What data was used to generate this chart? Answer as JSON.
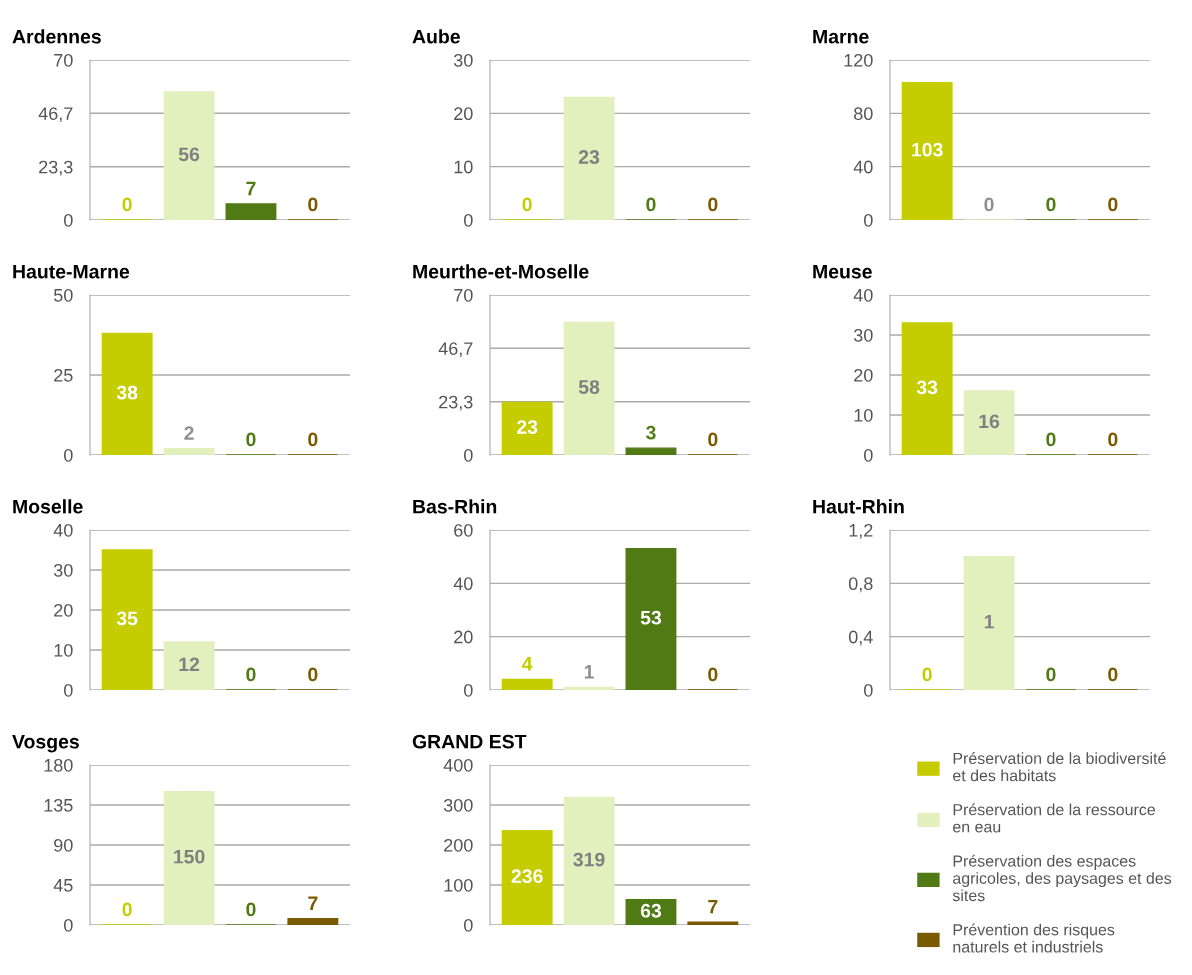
{
  "chart_data": [
    {
      "type": "bar",
      "title": "Ardennes",
      "categories": [
        null
      ],
      "ylim": [
        0,
        70
      ],
      "yticks": [
        0,
        {
          "value": 23.3,
          "label": "23,3"
        },
        {
          "value": 46.7,
          "label": "46,7"
        },
        70
      ],
      "grid": "y",
      "data_labels": true,
      "tick_labels": "y",
      "series": [
        {
          "color": "#c5cc00",
          "values": [
            0
          ]
        },
        {
          "color": "#e1f0bd",
          "values": [
            56
          ]
        },
        {
          "color": "#4f7a14",
          "values": [
            7
          ]
        },
        {
          "color": "#7a5a00",
          "values": [
            0
          ]
        }
      ]
    },
    {
      "type": "bar",
      "title": "Aube",
      "categories": [
        null
      ],
      "ylim": [
        0,
        30
      ],
      "yticks": [
        0,
        10,
        20,
        30
      ],
      "grid": "y",
      "data_labels": true,
      "tick_labels": "y",
      "series": [
        {
          "color": "#c5cc00",
          "values": [
            0
          ]
        },
        {
          "color": "#e1f0bd",
          "values": [
            23
          ]
        },
        {
          "color": "#4f7a14",
          "values": [
            0
          ]
        },
        {
          "color": "#7a5a00",
          "values": [
            0
          ]
        }
      ]
    },
    {
      "type": "bar",
      "title": "Marne",
      "categories": [
        null
      ],
      "ylim": [
        0,
        120
      ],
      "yticks": [
        0,
        40,
        80,
        120
      ],
      "grid": "y",
      "data_labels": true,
      "tick_labels": "y",
      "series": [
        {
          "color": "#c5cc00",
          "values": [
            103
          ]
        },
        {
          "color": "#e1f0bd",
          "values": [
            0
          ]
        },
        {
          "color": "#4f7a14",
          "values": [
            0
          ]
        },
        {
          "color": "#7a5a00",
          "values": [
            0
          ]
        }
      ]
    },
    {
      "type": "bar",
      "title": "Haute-Marne",
      "categories": [
        null
      ],
      "ylim": [
        0,
        50
      ],
      "yticks": [
        0,
        25,
        50
      ],
      "grid": "y",
      "data_labels": true,
      "tick_labels": "y",
      "series": [
        {
          "color": "#c5cc00",
          "values": [
            38
          ]
        },
        {
          "color": "#e1f0bd",
          "values": [
            2
          ]
        },
        {
          "color": "#4f7a14",
          "values": [
            0
          ]
        },
        {
          "color": "#7a5a00",
          "values": [
            0
          ]
        }
      ]
    },
    {
      "type": "bar",
      "title": "Meurthe-et-Moselle",
      "categories": [
        null
      ],
      "ylim": [
        0,
        70
      ],
      "yticks": [
        0,
        {
          "value": 23.3,
          "label": "23,3"
        },
        {
          "value": 46.7,
          "label": "46,7"
        },
        70
      ],
      "grid": "y",
      "data_labels": true,
      "tick_labels": "y",
      "series": [
        {
          "color": "#c5cc00",
          "values": [
            23
          ]
        },
        {
          "color": "#e1f0bd",
          "values": [
            58
          ]
        },
        {
          "color": "#4f7a14",
          "values": [
            3
          ]
        },
        {
          "color": "#7a5a00",
          "values": [
            0
          ]
        }
      ]
    },
    {
      "type": "bar",
      "title": "Meuse",
      "categories": [
        null
      ],
      "ylim": [
        0,
        40
      ],
      "yticks": [
        0,
        10,
        20,
        30,
        40
      ],
      "grid": "y",
      "data_labels": true,
      "tick_labels": "y",
      "series": [
        {
          "color": "#c5cc00",
          "values": [
            33
          ]
        },
        {
          "color": "#e1f0bd",
          "values": [
            16
          ]
        },
        {
          "color": "#4f7a14",
          "values": [
            0
          ]
        },
        {
          "color": "#7a5a00",
          "values": [
            0
          ]
        }
      ]
    },
    {
      "type": "bar",
      "title": "Moselle",
      "categories": [
        null
      ],
      "ylim": [
        0,
        40
      ],
      "yticks": [
        0,
        10,
        20,
        30,
        40
      ],
      "grid": "y",
      "data_labels": true,
      "tick_labels": "y",
      "series": [
        {
          "color": "#c5cc00",
          "values": [
            35
          ]
        },
        {
          "color": "#e1f0bd",
          "values": [
            12
          ]
        },
        {
          "color": "#4f7a14",
          "values": [
            0
          ]
        },
        {
          "color": "#7a5a00",
          "values": [
            0
          ]
        }
      ]
    },
    {
      "type": "bar",
      "title": "Bas-Rhin",
      "categories": [
        null
      ],
      "ylim": [
        0,
        60
      ],
      "yticks": [
        0,
        20,
        40,
        60
      ],
      "grid": "y",
      "data_labels": true,
      "tick_labels": "y",
      "series": [
        {
          "color": "#c5cc00",
          "values": [
            4
          ]
        },
        {
          "color": "#e1f0bd",
          "values": [
            1
          ]
        },
        {
          "color": "#4f7a14",
          "values": [
            53
          ]
        },
        {
          "color": "#7a5a00",
          "values": [
            0
          ]
        }
      ]
    },
    {
      "type": "bar",
      "title": "Haut-Rhin",
      "categories": [
        null
      ],
      "ylim": [
        0,
        1.2
      ],
      "yticks": [
        0,
        {
          "value": 0.4,
          "label": "0,4"
        },
        {
          "value": 0.8,
          "label": "0,8"
        },
        {
          "value": 1.2,
          "label": "1,2"
        }
      ],
      "grid": "y",
      "data_labels": true,
      "tick_labels": "y",
      "series": [
        {
          "color": "#c5cc00",
          "values": [
            0
          ]
        },
        {
          "color": "#e1f0bd",
          "values": [
            1
          ]
        },
        {
          "color": "#4f7a14",
          "values": [
            0
          ]
        },
        {
          "color": "#7a5a00",
          "values": [
            0
          ]
        }
      ]
    },
    {
      "type": "bar",
      "title": "Vosges",
      "categories": [
        null
      ],
      "ylim": [
        0,
        180
      ],
      "yticks": [
        0,
        45,
        90,
        135,
        180
      ],
      "grid": "y",
      "data_labels": true,
      "tick_labels": "y",
      "series": [
        {
          "color": "#c5cc00",
          "values": [
            0
          ]
        },
        {
          "color": "#e1f0bd",
          "values": [
            150
          ]
        },
        {
          "color": "#4f7a14",
          "values": [
            0
          ]
        },
        {
          "color": "#7a5a00",
          "values": [
            7
          ]
        }
      ]
    },
    {
      "type": "bar",
      "title": "GRAND EST",
      "categories": [
        null
      ],
      "ylim": [
        0,
        400
      ],
      "yticks": [
        0,
        100,
        200,
        300,
        400
      ],
      "grid": "y",
      "data_labels": true,
      "tick_labels": "y",
      "legend": "right",
      "series": [
        {
          "name": "Préservation de la biodiversité\net des habitats",
          "color": "#c5cc00",
          "values": [
            236
          ]
        },
        {
          "name": "Préservation de la ressource\nen eau",
          "color": "#e1f0bd",
          "values": [
            319
          ]
        },
        {
          "name": "Préservation des espaces\nagricoles, des paysages et des\nsites",
          "color": "#4f7a14",
          "values": [
            63
          ]
        },
        {
          "name": "Prévention des risques\nnaturels et industriels",
          "color": "#7a5a00",
          "values": [
            7
          ]
        }
      ]
    }
  ]
}
